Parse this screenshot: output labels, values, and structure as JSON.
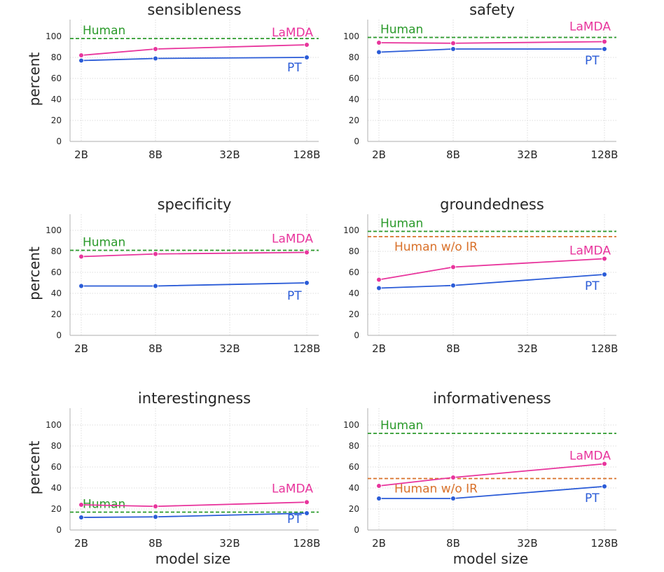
{
  "chart_data": [
    {
      "type": "line",
      "title": "sensibleness",
      "xlabel": "",
      "ylabel": "percent",
      "x": [
        "2B",
        "8B",
        "32B",
        "128B"
      ],
      "ylim": [
        0,
        115
      ],
      "yticks": [
        "0",
        "20",
        "40",
        "60",
        "80",
        "100"
      ],
      "series": [
        {
          "name": "LaMDA",
          "color": "#e8349c",
          "points": [
            {
              "x": "2B",
              "y": 82
            },
            {
              "x": "8B",
              "y": 88
            },
            {
              "x": "128B",
              "y": 92
            }
          ]
        },
        {
          "name": "PT",
          "color": "#2a5bd7",
          "points": [
            {
              "x": "2B",
              "y": 77
            },
            {
              "x": "8B",
              "y": 79
            },
            {
              "x": "128B",
              "y": 80
            }
          ]
        }
      ],
      "reference_lines": [
        {
          "name": "Human",
          "value": 98,
          "color": "#2b9a2b"
        }
      ]
    },
    {
      "type": "line",
      "title": "safety",
      "xlabel": "",
      "ylabel": "",
      "x": [
        "2B",
        "8B",
        "32B",
        "128B"
      ],
      "ylim": [
        0,
        115
      ],
      "yticks": [
        "0",
        "20",
        "40",
        "60",
        "80",
        "100"
      ],
      "series": [
        {
          "name": "LaMDA",
          "color": "#e8349c",
          "points": [
            {
              "x": "2B",
              "y": 94
            },
            {
              "x": "8B",
              "y": 93.5
            },
            {
              "x": "128B",
              "y": 95
            }
          ]
        },
        {
          "name": "PT",
          "color": "#2a5bd7",
          "points": [
            {
              "x": "2B",
              "y": 85
            },
            {
              "x": "8B",
              "y": 88
            },
            {
              "x": "128B",
              "y": 88
            }
          ]
        }
      ],
      "reference_lines": [
        {
          "name": "Human",
          "value": 99,
          "color": "#2b9a2b"
        }
      ]
    },
    {
      "type": "line",
      "title": "specificity",
      "xlabel": "",
      "ylabel": "percent",
      "x": [
        "2B",
        "8B",
        "32B",
        "128B"
      ],
      "ylim": [
        0,
        115
      ],
      "yticks": [
        "0",
        "20",
        "40",
        "60",
        "80",
        "100"
      ],
      "series": [
        {
          "name": "LaMDA",
          "color": "#e8349c",
          "points": [
            {
              "x": "2B",
              "y": 75
            },
            {
              "x": "8B",
              "y": 77.5
            },
            {
              "x": "128B",
              "y": 79
            }
          ]
        },
        {
          "name": "PT",
          "color": "#2a5bd7",
          "points": [
            {
              "x": "2B",
              "y": 47
            },
            {
              "x": "8B",
              "y": 47
            },
            {
              "x": "128B",
              "y": 50
            }
          ]
        }
      ],
      "reference_lines": [
        {
          "name": "Human",
          "value": 81,
          "color": "#2b9a2b"
        }
      ]
    },
    {
      "type": "line",
      "title": "groundedness",
      "xlabel": "",
      "ylabel": "",
      "x": [
        "2B",
        "8B",
        "32B",
        "128B"
      ],
      "ylim": [
        0,
        115
      ],
      "yticks": [
        "0",
        "20",
        "40",
        "60",
        "80",
        "100"
      ],
      "series": [
        {
          "name": "LaMDA",
          "color": "#e8349c",
          "points": [
            {
              "x": "2B",
              "y": 53
            },
            {
              "x": "8B",
              "y": 65
            },
            {
              "x": "128B",
              "y": 73
            }
          ]
        },
        {
          "name": "PT",
          "color": "#2a5bd7",
          "points": [
            {
              "x": "2B",
              "y": 45
            },
            {
              "x": "8B",
              "y": 47.5
            },
            {
              "x": "128B",
              "y": 58
            }
          ]
        }
      ],
      "reference_lines": [
        {
          "name": "Human",
          "value": 99,
          "color": "#2b9a2b"
        },
        {
          "name": "Human w/o IR",
          "value": 94,
          "color": "#d9712a"
        }
      ]
    },
    {
      "type": "line",
      "title": "interestingness",
      "xlabel": "model size",
      "ylabel": "percent",
      "x": [
        "2B",
        "8B",
        "32B",
        "128B"
      ],
      "ylim": [
        0,
        115
      ],
      "yticks": [
        "0",
        "20",
        "40",
        "60",
        "80",
        "100"
      ],
      "series": [
        {
          "name": "LaMDA",
          "color": "#e8349c",
          "points": [
            {
              "x": "2B",
              "y": 24
            },
            {
              "x": "8B",
              "y": 22.5
            },
            {
              "x": "128B",
              "y": 26.5
            }
          ]
        },
        {
          "name": "PT",
          "color": "#2a5bd7",
          "points": [
            {
              "x": "2B",
              "y": 12
            },
            {
              "x": "8B",
              "y": 12.5
            },
            {
              "x": "128B",
              "y": 16
            }
          ]
        }
      ],
      "reference_lines": [
        {
          "name": "Human",
          "value": 17,
          "color": "#2b9a2b"
        }
      ]
    },
    {
      "type": "line",
      "title": "informativeness",
      "xlabel": "model size",
      "ylabel": "",
      "x": [
        "2B",
        "8B",
        "32B",
        "128B"
      ],
      "ylim": [
        0,
        115
      ],
      "yticks": [
        "0",
        "20",
        "40",
        "60",
        "80",
        "100"
      ],
      "series": [
        {
          "name": "LaMDA",
          "color": "#e8349c",
          "points": [
            {
              "x": "2B",
              "y": 42
            },
            {
              "x": "8B",
              "y": 50
            },
            {
              "x": "128B",
              "y": 63
            }
          ]
        },
        {
          "name": "PT",
          "color": "#2a5bd7",
          "points": [
            {
              "x": "2B",
              "y": 30
            },
            {
              "x": "8B",
              "y": 30
            },
            {
              "x": "128B",
              "y": 41.5
            }
          ]
        }
      ],
      "reference_lines": [
        {
          "name": "Human",
          "value": 92,
          "color": "#2b9a2b"
        },
        {
          "name": "Human w/o IR",
          "value": 49,
          "color": "#d9712a"
        }
      ]
    }
  ]
}
